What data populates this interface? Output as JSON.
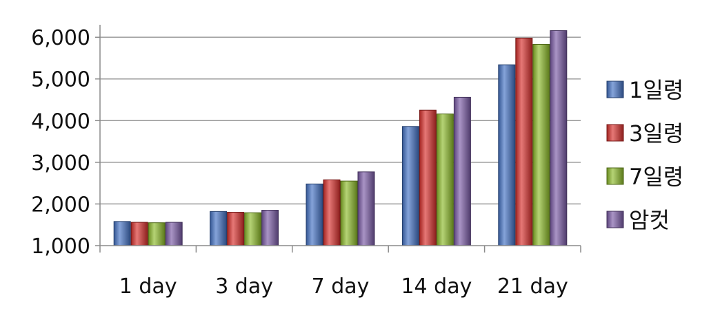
{
  "chart_data": {
    "type": "bar",
    "title": "",
    "xlabel": "",
    "ylabel": "",
    "categories": [
      "1 day",
      "3 day",
      "7 day",
      "14 day",
      "21 day"
    ],
    "ylim": [
      1000,
      6300
    ],
    "yticks": [
      "1,000",
      "2,000",
      "3,000",
      "4,000",
      "5,000",
      "6,000"
    ],
    "ytick_values": [
      1000,
      2000,
      3000,
      4000,
      5000,
      6000
    ],
    "grid": true,
    "legend_position": "right",
    "series": [
      {
        "name": "1일령",
        "color": "#4472C4",
        "values": [
          1580,
          1820,
          2480,
          3860,
          5340
        ]
      },
      {
        "name": "3일령",
        "color": "#D9302C",
        "values": [
          1560,
          1800,
          2580,
          4250,
          5980
        ]
      },
      {
        "name": "7일령",
        "color": "#8DBB2A",
        "values": [
          1550,
          1790,
          2550,
          4160,
          5830
        ]
      },
      {
        "name": "암컷",
        "color": "#7A5AA6",
        "values": [
          1560,
          1850,
          2770,
          4560,
          6160
        ]
      }
    ]
  }
}
